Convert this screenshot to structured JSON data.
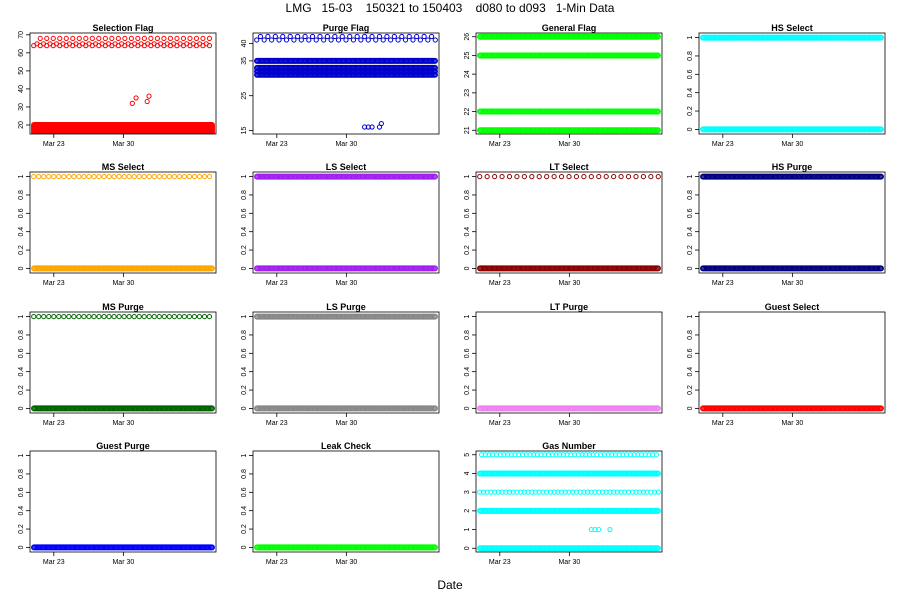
{
  "page": {
    "title": "LMG   15-03    150321 to 150403    d080 to d093   1-Min Data",
    "xlabel": "Date"
  },
  "chart_data": [
    {
      "type": "scatter",
      "title": "Selection Flag",
      "color": "#ff0000",
      "xticks": [
        "Mar 23",
        "Mar 30"
      ],
      "ylim": [
        15,
        71
      ],
      "yticks": [
        20,
        30,
        40,
        50,
        60,
        70
      ],
      "series": [
        {
          "name": "dense",
          "dense": true,
          "y": [
            16,
            17,
            18,
            19,
            20
          ]
        },
        {
          "name": "sparse",
          "y": [
            64,
            65,
            68
          ],
          "step": 0.035
        },
        {
          "name": "spike",
          "x": [
            0.55,
            0.57,
            0.63,
            0.64
          ],
          "y": [
            32,
            35,
            33,
            36
          ]
        }
      ]
    },
    {
      "type": "scatter",
      "title": "Purge Flag",
      "color": "#0000cc",
      "xticks": [
        "Mar 23",
        "Mar 30"
      ],
      "ylim": [
        14,
        43
      ],
      "yticks": [
        15,
        25,
        35,
        40
      ],
      "series": [
        {
          "name": "dense",
          "dense": true,
          "y": [
            31,
            32,
            33,
            35
          ]
        },
        {
          "name": "sparse",
          "y": [
            41,
            42
          ],
          "step": 0.04
        },
        {
          "name": "dip",
          "x": [
            0.6,
            0.62,
            0.64,
            0.68,
            0.69
          ],
          "y": [
            16,
            16,
            16,
            16,
            17
          ]
        }
      ]
    },
    {
      "type": "scatter",
      "title": "General Flag",
      "color": "#00ff00",
      "xticks": [
        "Mar 23",
        "Mar 30"
      ],
      "ylim": [
        20.8,
        26.2
      ],
      "yticks": [
        21,
        22,
        23,
        24,
        25,
        26
      ],
      "series": [
        {
          "name": "dense",
          "dense": true,
          "y": [
            21,
            22,
            25,
            26
          ]
        }
      ]
    },
    {
      "type": "scatter",
      "title": "HS Select",
      "color": "#00ffff",
      "xticks": [
        "Mar 23",
        "Mar 30"
      ],
      "ylim": [
        -0.05,
        1.05
      ],
      "yticks": [
        0.0,
        0.2,
        0.4,
        0.6,
        0.8,
        1.0
      ],
      "series": [
        {
          "name": "dense",
          "dense": true,
          "y": [
            0,
            1
          ]
        }
      ]
    },
    {
      "type": "scatter",
      "title": "MS Select",
      "color": "#ffa500",
      "xticks": [
        "Mar 23",
        "Mar 30"
      ],
      "ylim": [
        -0.05,
        1.05
      ],
      "yticks": [
        0.0,
        0.2,
        0.4,
        0.6,
        0.8,
        1.0
      ],
      "series": [
        {
          "name": "dense",
          "dense": true,
          "y": [
            0
          ]
        },
        {
          "name": "sparse",
          "y": [
            1
          ],
          "step": 0.027
        }
      ]
    },
    {
      "type": "scatter",
      "title": "LS Select",
      "color": "#a020f0",
      "xticks": [
        "Mar 23",
        "Mar 30"
      ],
      "ylim": [
        -0.05,
        1.05
      ],
      "yticks": [
        0.0,
        0.2,
        0.4,
        0.6,
        0.8,
        1.0
      ],
      "series": [
        {
          "name": "dense",
          "dense": true,
          "y": [
            0,
            1
          ]
        }
      ]
    },
    {
      "type": "scatter",
      "title": "LT Select",
      "color": "#8b0000",
      "xticks": [
        "Mar 23",
        "Mar 30"
      ],
      "ylim": [
        -0.05,
        1.05
      ],
      "yticks": [
        0.0,
        0.2,
        0.4,
        0.6,
        0.8,
        1.0
      ],
      "series": [
        {
          "name": "dense",
          "dense": true,
          "y": [
            0
          ]
        },
        {
          "name": "sparse",
          "y": [
            1
          ],
          "step": 0.04
        }
      ]
    },
    {
      "type": "scatter",
      "title": "HS Purge",
      "color": "#000080",
      "xticks": [
        "Mar 23",
        "Mar 30"
      ],
      "ylim": [
        -0.05,
        1.05
      ],
      "yticks": [
        0.0,
        0.2,
        0.4,
        0.6,
        0.8,
        1.0
      ],
      "series": [
        {
          "name": "dense",
          "dense": true,
          "y": [
            0,
            1
          ]
        }
      ]
    },
    {
      "type": "scatter",
      "title": "MS Purge",
      "color": "#006400",
      "xticks": [
        "Mar 23",
        "Mar 30"
      ],
      "ylim": [
        -0.05,
        1.05
      ],
      "yticks": [
        0.0,
        0.2,
        0.4,
        0.6,
        0.8,
        1.0
      ],
      "series": [
        {
          "name": "dense",
          "dense": true,
          "y": [
            0
          ]
        },
        {
          "name": "sparse",
          "y": [
            1
          ],
          "step": 0.027
        }
      ]
    },
    {
      "type": "scatter",
      "title": "LS Purge",
      "color": "#888888",
      "xticks": [
        "Mar 23",
        "Mar 30"
      ],
      "ylim": [
        -0.05,
        1.05
      ],
      "yticks": [
        0.0,
        0.2,
        0.4,
        0.6,
        0.8,
        1.0
      ],
      "series": [
        {
          "name": "dense",
          "dense": true,
          "y": [
            0,
            1
          ]
        }
      ]
    },
    {
      "type": "scatter",
      "title": "LT Purge",
      "color": "#ee82ee",
      "xticks": [
        "Mar 23",
        "Mar 30"
      ],
      "ylim": [
        -0.05,
        1.05
      ],
      "yticks": [
        0.0,
        0.2,
        0.4,
        0.6,
        0.8,
        1.0
      ],
      "series": [
        {
          "name": "dense",
          "dense": true,
          "y": [
            0
          ]
        }
      ]
    },
    {
      "type": "scatter",
      "title": "Guest Select",
      "color": "#ff0000",
      "xticks": [
        "Mar 23",
        "Mar 30"
      ],
      "ylim": [
        -0.05,
        1.05
      ],
      "yticks": [
        0.0,
        0.2,
        0.4,
        0.6,
        0.8,
        1.0
      ],
      "series": [
        {
          "name": "dense",
          "dense": true,
          "y": [
            0
          ]
        }
      ]
    },
    {
      "type": "scatter",
      "title": "Guest Purge",
      "color": "#0000ff",
      "xticks": [
        "Mar 23",
        "Mar 30"
      ],
      "ylim": [
        -0.05,
        1.05
      ],
      "yticks": [
        0.0,
        0.2,
        0.4,
        0.6,
        0.8,
        1.0
      ],
      "series": [
        {
          "name": "dense",
          "dense": true,
          "y": [
            0
          ]
        }
      ]
    },
    {
      "type": "scatter",
      "title": "Leak Check",
      "color": "#00ff00",
      "xticks": [
        "Mar 23",
        "Mar 30"
      ],
      "ylim": [
        -0.05,
        1.05
      ],
      "yticks": [
        0.0,
        0.2,
        0.4,
        0.6,
        0.8,
        1.0
      ],
      "series": [
        {
          "name": "dense",
          "dense": true,
          "y": [
            0
          ]
        }
      ]
    },
    {
      "type": "scatter",
      "title": "Gas Number",
      "color": "#00ffff",
      "xticks": [
        "Mar 23",
        "Mar 30"
      ],
      "ylim": [
        -0.2,
        5.2
      ],
      "yticks": [
        0,
        1,
        2,
        3,
        4,
        5
      ],
      "series": [
        {
          "name": "dense",
          "dense": true,
          "y": [
            0,
            2,
            4
          ]
        },
        {
          "name": "sparse",
          "y": [
            3,
            5
          ],
          "step": 0.02
        },
        {
          "name": "ones",
          "x": [
            0.62,
            0.64,
            0.66,
            0.72
          ],
          "y": [
            1,
            1,
            1,
            1
          ]
        }
      ]
    }
  ]
}
